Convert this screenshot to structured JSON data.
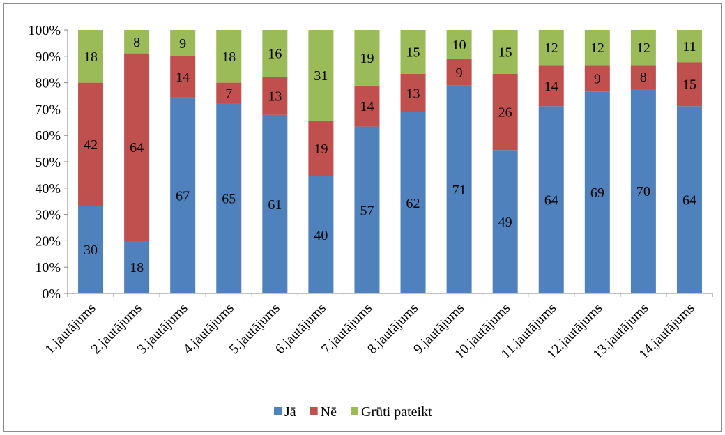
{
  "chart_data": {
    "type": "bar",
    "stacked": "percent",
    "categories": [
      "1.jautājums",
      "2.jautājums",
      "3.jautājums",
      "4.jautājums",
      "5.jautājums",
      "6.jautājums",
      "7.jautājums",
      "8.jautājums",
      "9.jautājums",
      "10.jautājums",
      "11.jautājums",
      "12.jautājums",
      "13.jautājums",
      "14.jautājums"
    ],
    "series": [
      {
        "name": "Jā",
        "color": "#4f81bd",
        "values": [
          30,
          18,
          67,
          65,
          61,
          40,
          57,
          62,
          71,
          49,
          64,
          69,
          70,
          64
        ]
      },
      {
        "name": "Nē",
        "color": "#c0504d",
        "values": [
          42,
          64,
          14,
          7,
          13,
          19,
          14,
          13,
          9,
          26,
          14,
          9,
          8,
          15
        ]
      },
      {
        "name": "Grūti pateikt",
        "color": "#9bbb59",
        "values": [
          18,
          8,
          9,
          18,
          16,
          31,
          19,
          15,
          10,
          15,
          12,
          12,
          12,
          11
        ]
      }
    ],
    "y_ticks": [
      "0%",
      "10%",
      "20%",
      "30%",
      "40%",
      "50%",
      "60%",
      "70%",
      "80%",
      "90%",
      "100%"
    ],
    "ylim": [
      0,
      100
    ],
    "grid": false,
    "legend_position": "bottom",
    "title": "",
    "xlabel": "",
    "ylabel": ""
  }
}
